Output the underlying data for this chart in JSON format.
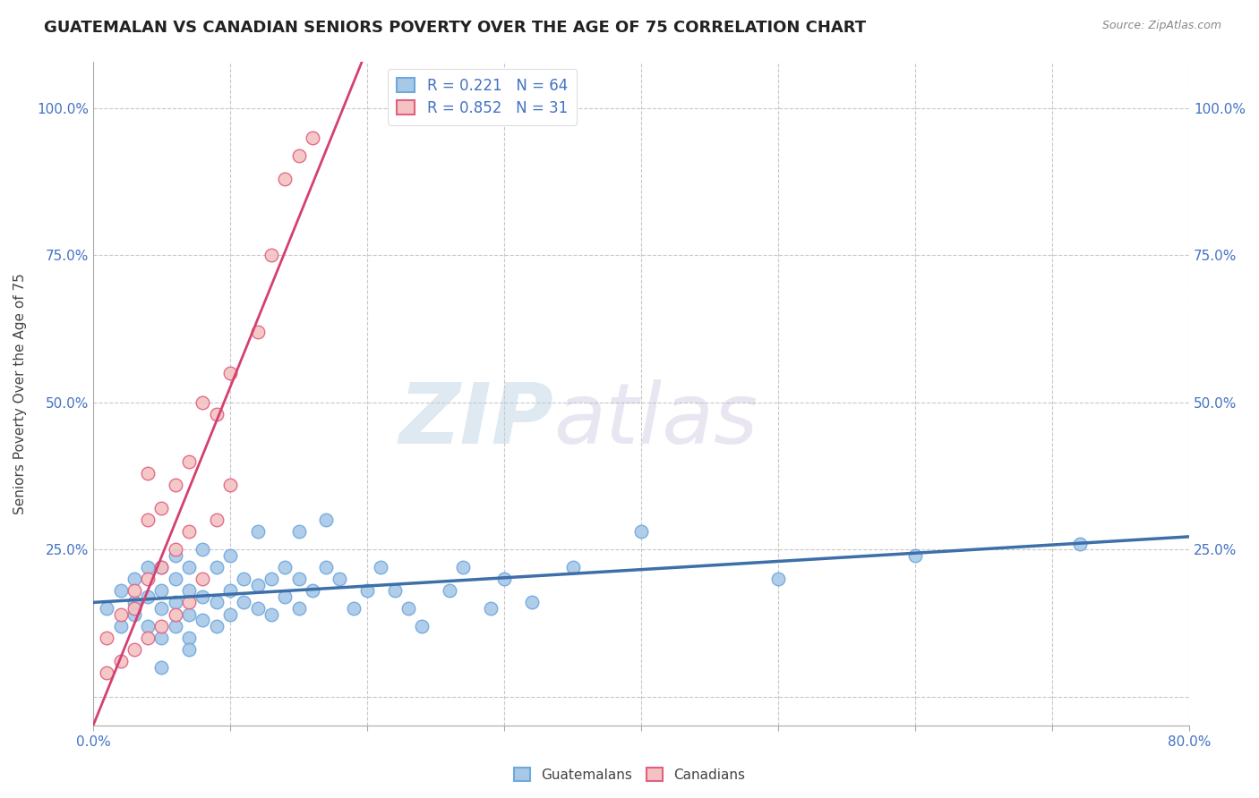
{
  "title": "GUATEMALAN VS CANADIAN SENIORS POVERTY OVER THE AGE OF 75 CORRELATION CHART",
  "source": "Source: ZipAtlas.com",
  "ylabel": "Seniors Poverty Over the Age of 75",
  "xlabel": "",
  "xlim": [
    0.0,
    0.8
  ],
  "ylim": [
    -0.05,
    1.08
  ],
  "yticks": [
    0.0,
    0.25,
    0.5,
    0.75,
    1.0
  ],
  "ytick_labels_left": [
    "",
    "25.0%",
    "50.0%",
    "75.0%",
    "100.0%"
  ],
  "ytick_labels_right": [
    "",
    "25.0%",
    "50.0%",
    "75.0%",
    "100.0%"
  ],
  "xtick_vals": [
    0.0,
    0.1,
    0.2,
    0.3,
    0.4,
    0.5,
    0.6,
    0.7,
    0.8
  ],
  "xtick_labels": [
    "0.0%",
    "",
    "",
    "",
    "",
    "",
    "",
    "",
    "80.0%"
  ],
  "watermark_zip": "ZIP",
  "watermark_atlas": "atlas",
  "guatemalan_color_edge": "#6fa8dc",
  "guatemalan_color_fill": "#a8c8e8",
  "canadian_color_edge": "#e06080",
  "canadian_color_fill": "#f4c2c2",
  "line_blue": "#3d6fa8",
  "line_pink": "#d44070",
  "r_guatemalan": 0.221,
  "n_guatemalan": 64,
  "r_canadian": 0.852,
  "n_canadian": 31,
  "guatemalan_x": [
    0.01,
    0.02,
    0.02,
    0.03,
    0.03,
    0.03,
    0.04,
    0.04,
    0.04,
    0.05,
    0.05,
    0.05,
    0.05,
    0.05,
    0.06,
    0.06,
    0.06,
    0.06,
    0.07,
    0.07,
    0.07,
    0.07,
    0.07,
    0.08,
    0.08,
    0.08,
    0.09,
    0.09,
    0.09,
    0.1,
    0.1,
    0.1,
    0.11,
    0.11,
    0.12,
    0.12,
    0.12,
    0.13,
    0.13,
    0.14,
    0.14,
    0.15,
    0.15,
    0.15,
    0.16,
    0.17,
    0.17,
    0.18,
    0.19,
    0.2,
    0.21,
    0.22,
    0.23,
    0.24,
    0.26,
    0.27,
    0.29,
    0.3,
    0.32,
    0.35,
    0.4,
    0.5,
    0.6,
    0.72
  ],
  "guatemalan_y": [
    0.15,
    0.12,
    0.18,
    0.14,
    0.16,
    0.2,
    0.12,
    0.17,
    0.22,
    0.1,
    0.15,
    0.18,
    0.22,
    0.05,
    0.12,
    0.16,
    0.2,
    0.24,
    0.1,
    0.14,
    0.18,
    0.22,
    0.08,
    0.13,
    0.17,
    0.25,
    0.12,
    0.16,
    0.22,
    0.14,
    0.18,
    0.24,
    0.16,
    0.2,
    0.15,
    0.19,
    0.28,
    0.14,
    0.2,
    0.17,
    0.22,
    0.15,
    0.2,
    0.28,
    0.18,
    0.22,
    0.3,
    0.2,
    0.15,
    0.18,
    0.22,
    0.18,
    0.15,
    0.12,
    0.18,
    0.22,
    0.15,
    0.2,
    0.16,
    0.22,
    0.28,
    0.2,
    0.24,
    0.26
  ],
  "canadian_x": [
    0.01,
    0.01,
    0.02,
    0.02,
    0.03,
    0.03,
    0.03,
    0.04,
    0.04,
    0.04,
    0.04,
    0.05,
    0.05,
    0.05,
    0.06,
    0.06,
    0.06,
    0.07,
    0.07,
    0.07,
    0.08,
    0.08,
    0.09,
    0.09,
    0.1,
    0.1,
    0.12,
    0.13,
    0.14,
    0.15,
    0.16
  ],
  "canadian_y": [
    0.04,
    0.1,
    0.06,
    0.14,
    0.08,
    0.15,
    0.18,
    0.1,
    0.2,
    0.3,
    0.38,
    0.12,
    0.22,
    0.32,
    0.14,
    0.25,
    0.36,
    0.16,
    0.28,
    0.4,
    0.2,
    0.5,
    0.3,
    0.48,
    0.36,
    0.55,
    0.62,
    0.75,
    0.88,
    0.92,
    0.95
  ],
  "background_color": "#ffffff",
  "grid_color": "#c8c8c8",
  "title_fontsize": 13,
  "axis_label_fontsize": 11,
  "tick_fontsize": 11,
  "tick_color": "#4472c4",
  "legend_fontsize": 12
}
